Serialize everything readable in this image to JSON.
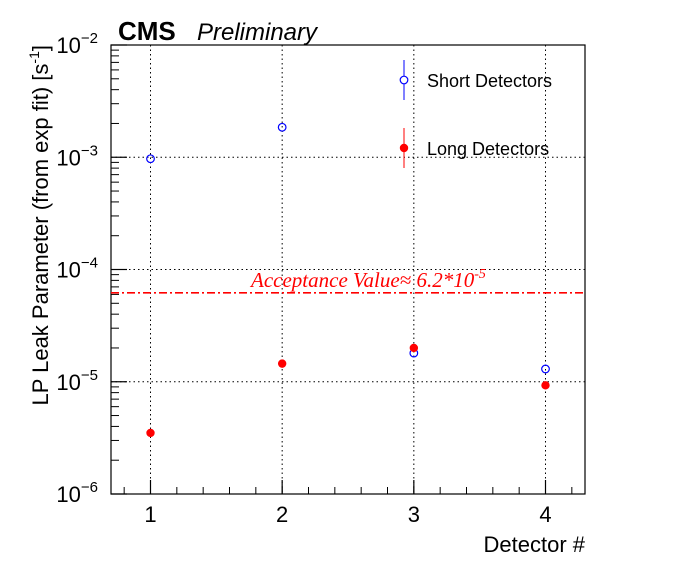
{
  "chart_data": {
    "type": "scatter",
    "experiment_label": "CMS",
    "status_label": "Preliminary",
    "xlabel": "Detector #",
    "ylabel": "LP Leak Parameter (from exp fit) [s",
    "ylabel_sup": "-1",
    "ylabel_end": "]",
    "xlim": [
      0.7,
      4.3
    ],
    "ylim": [
      1e-06,
      0.01
    ],
    "y_scale": "log",
    "grid": true,
    "legend_position": "top-right",
    "x_ticks": [
      {
        "value": 1,
        "label": "1"
      },
      {
        "value": 2,
        "label": "2"
      },
      {
        "value": 3,
        "label": "3"
      },
      {
        "value": 4,
        "label": "4"
      }
    ],
    "y_ticks": [
      {
        "value": 1e-06,
        "base": "10",
        "exp": "−6"
      },
      {
        "value": 1e-05,
        "base": "10",
        "exp": "−5"
      },
      {
        "value": 0.0001,
        "base": "10",
        "exp": "−4"
      },
      {
        "value": 0.001,
        "base": "10",
        "exp": "−3"
      },
      {
        "value": 0.01,
        "base": "10",
        "exp": "−2"
      }
    ],
    "series": [
      {
        "name": "Short Detectors",
        "color": "#0000ff",
        "marker": "open-circle",
        "x": [
          1,
          2,
          3,
          4
        ],
        "y": [
          0.00097,
          0.00185,
          1.8e-05,
          1.3e-05
        ]
      },
      {
        "name": "Long Detectors",
        "color": "#ff0000",
        "marker": "filled-circle",
        "x": [
          1,
          2,
          3,
          4
        ],
        "y": [
          3.5e-06,
          1.45e-05,
          2e-05,
          9.3e-06
        ]
      }
    ],
    "reference_line": {
      "value": 6.2e-05,
      "color": "#ff0000",
      "style": "dash-dot",
      "label_prefix": "Acceptance Value≈ 6.2*10",
      "label_exp": "-5"
    }
  }
}
